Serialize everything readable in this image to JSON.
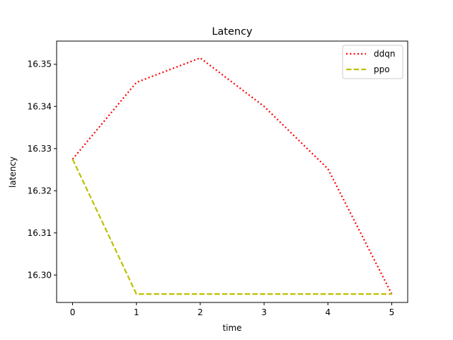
{
  "chart_data": {
    "type": "line",
    "title": "Latency",
    "xlabel": "time",
    "ylabel": "latency",
    "x": [
      0,
      1,
      2,
      3,
      4,
      5
    ],
    "x_ticks": [
      "0",
      "1",
      "2",
      "3",
      "4",
      "5"
    ],
    "y_ticks": [
      "16.30",
      "16.31",
      "16.32",
      "16.33",
      "16.34",
      "16.35"
    ],
    "xlim": [
      -0.25,
      5.25
    ],
    "ylim": [
      16.2935,
      16.3555
    ],
    "grid": false,
    "legend_position": "upper right",
    "series": [
      {
        "name": "ddqn",
        "values": [
          16.3275,
          16.3457,
          16.3515,
          16.34,
          16.3252,
          16.2955
        ],
        "color": "#ff0000",
        "linestyle": "dotted"
      },
      {
        "name": "ppo",
        "values": [
          16.3275,
          16.2955,
          16.2955,
          16.2955,
          16.2955,
          16.2955
        ],
        "color": "#bfbf00",
        "linestyle": "dashed"
      }
    ]
  }
}
